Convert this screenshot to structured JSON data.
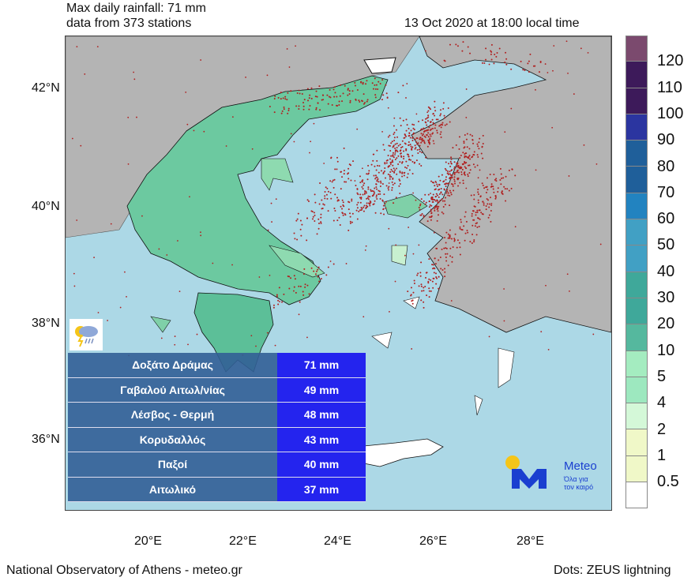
{
  "header": {
    "line1": "Max daily rainfall: 71 mm",
    "line2": "data from 373 stations",
    "datetime": "13 Oct 2020 at 18:00 local time"
  },
  "footer": {
    "source": "National Observatory of Athens - meteo.gr",
    "dots": "Dots: ZEUS lightning"
  },
  "axes": {
    "lat": [
      "42°N",
      "40°N",
      "38°N",
      "36°N"
    ],
    "lon": [
      "20°E",
      "22°E",
      "24°E",
      "26°E",
      "28°E"
    ]
  },
  "colorbar": {
    "labels": [
      "120",
      "110",
      "100",
      "90",
      "80",
      "70",
      "60",
      "50",
      "40",
      "30",
      "20",
      "10",
      "5",
      "4",
      "2",
      "1",
      "0.5"
    ],
    "colors": [
      "#7b4a6e",
      "#3d1a5a",
      "#3d1a5a",
      "#2b35a0",
      "#1f5f9a",
      "#1f5f9a",
      "#2283c0",
      "#41a0c4",
      "#41a0c4",
      "#3fa89a",
      "#3fa89a",
      "#55b89e",
      "#a4ecc0",
      "#9de8bf",
      "#d4f8d8",
      "#f0f8c8",
      "#f0f8c8",
      "#ffffff"
    ]
  },
  "stations": [
    {
      "name": "Δοξάτο Δράμας",
      "value": "71 mm"
    },
    {
      "name": "Γαβαλού Αιτωλ/νίας",
      "value": "49 mm"
    },
    {
      "name": "Λέσβος - Θερμή",
      "value": "48 mm"
    },
    {
      "name": "Κορυδαλλός",
      "value": "43 mm"
    },
    {
      "name": "Παξοί",
      "value": "40 mm"
    },
    {
      "name": "Αιτωλικό",
      "value": "37 mm"
    }
  ],
  "logo": {
    "brand": "Meteo",
    "tagline1": "Όλα για",
    "tagline2": "τον καιρό"
  },
  "icons": {
    "weather": "thunderstorm-rain-icon"
  },
  "colors": {
    "sea": "#acd8e6",
    "land_other": "#b4b4b4",
    "lightning": "#b02020",
    "table_value_bg": "#2424ee"
  }
}
